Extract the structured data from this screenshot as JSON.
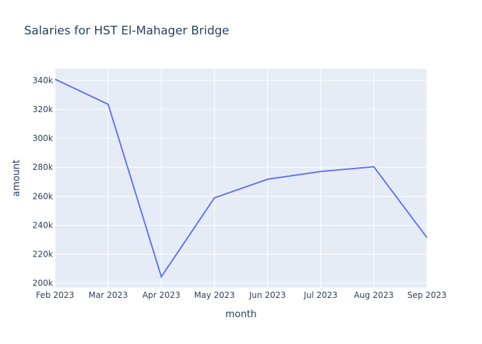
{
  "chart_data": {
    "type": "line",
    "title": "Salaries for HST El-Mahager Bridge",
    "xlabel": "month",
    "ylabel": "amount",
    "x": [
      "2023-02-01",
      "2023-03-01",
      "2023-04-01",
      "2023-05-01",
      "2023-06-01",
      "2023-07-01",
      "2023-08-01",
      "2023-09-01"
    ],
    "x_tick_labels": [
      "Feb 2023",
      "Mar 2023",
      "Apr 2023",
      "May 2023",
      "Jun 2023",
      "Jul 2023",
      "Aug 2023",
      "Sep 2023"
    ],
    "series": [
      {
        "values": [
          340800,
          323500,
          204500,
          258900,
          271800,
          277100,
          280400,
          231500
        ],
        "color": "#636efa"
      }
    ],
    "ylim": [
      197000,
      348000
    ],
    "y_ticks": [
      200000,
      220000,
      240000,
      260000,
      280000,
      300000,
      320000,
      340000
    ],
    "y_tick_labels": [
      "200k",
      "220k",
      "240k",
      "260k",
      "280k",
      "300k",
      "320k",
      "340k"
    ],
    "grid": true,
    "plot_background": "#e5ecf6"
  }
}
